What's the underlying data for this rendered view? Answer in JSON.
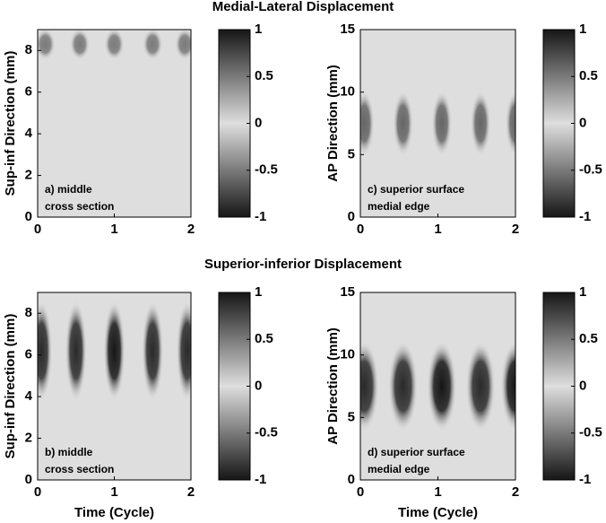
{
  "figure_titles": [
    "Medial-Lateral Displacement",
    "Superior-inferior Displacement"
  ],
  "chart_data": [
    {
      "type": "heatmap",
      "ylabel": "Sup-inf Direction (mm)",
      "annotation": [
        "a) middle",
        "cross section"
      ],
      "xlim": [
        0,
        2
      ],
      "xticks": [
        0,
        1,
        2
      ],
      "ylim": [
        0,
        9
      ],
      "yticks": [
        0,
        2,
        4,
        6,
        8
      ],
      "clim": [
        -1,
        1
      ],
      "cticks": [
        1,
        0.5,
        0,
        -0.5,
        -1
      ],
      "blobs": [
        {
          "x": 0.1,
          "y": 8.3,
          "value": 0.5
        },
        {
          "x": 0.55,
          "y": 8.3,
          "value": 0.5
        },
        {
          "x": 1.0,
          "y": 8.3,
          "value": 0.5
        },
        {
          "x": 1.5,
          "y": 8.3,
          "value": 0.5
        },
        {
          "x": 1.92,
          "y": 8.3,
          "value": 0.5
        }
      ]
    },
    {
      "type": "heatmap",
      "ylabel": "AP Direction (mm)",
      "annotation": [
        "c) superior surface",
        "medial edge"
      ],
      "xlim": [
        0,
        2
      ],
      "xticks": [
        0,
        1,
        2
      ],
      "ylim": [
        0,
        15
      ],
      "yticks": [
        0,
        5,
        10,
        15
      ],
      "clim": [
        -1,
        1
      ],
      "cticks": [
        1,
        0.5,
        0,
        -0.5,
        -1
      ],
      "blobs": [
        {
          "x": 0.05,
          "y": 7.5,
          "value": 0.6
        },
        {
          "x": 0.55,
          "y": 7.5,
          "value": 0.6
        },
        {
          "x": 1.05,
          "y": 7.5,
          "value": 0.6
        },
        {
          "x": 1.55,
          "y": 7.5,
          "value": 0.6
        },
        {
          "x": 2.0,
          "y": 7.5,
          "value": 0.6
        }
      ]
    },
    {
      "type": "heatmap",
      "ylabel": "Sup-inf Direction (mm)",
      "xlabel": "Time (Cycle)",
      "annotation": [
        "b) middle",
        "cross section"
      ],
      "xlim": [
        0,
        2
      ],
      "xticks": [
        0,
        1,
        2
      ],
      "ylim": [
        0,
        9
      ],
      "yticks": [
        0,
        2,
        4,
        6,
        8
      ],
      "clim": [
        -1,
        1
      ],
      "cticks": [
        1,
        0.5,
        0,
        -0.5,
        -1
      ],
      "blobs": [
        {
          "x": 0.05,
          "y": 6.2,
          "value": -0.9
        },
        {
          "x": 0.5,
          "y": 6.2,
          "value": -0.9
        },
        {
          "x": 1.0,
          "y": 6.2,
          "value": -1
        },
        {
          "x": 1.5,
          "y": 6.2,
          "value": -0.9
        },
        {
          "x": 1.95,
          "y": 6.2,
          "value": -0.9
        }
      ]
    },
    {
      "type": "heatmap",
      "ylabel": "AP Direction (mm)",
      "xlabel": "Time (Cycle)",
      "annotation": [
        "d) superior surface",
        "medial edge"
      ],
      "xlim": [
        0,
        2
      ],
      "xticks": [
        0,
        1,
        2
      ],
      "ylim": [
        0,
        15
      ],
      "yticks": [
        0,
        5,
        10,
        15
      ],
      "clim": [
        -1,
        1
      ],
      "cticks": [
        1,
        0.5,
        0,
        -0.5,
        -1
      ],
      "blobs": [
        {
          "x": 0.05,
          "y": 7.5,
          "value": -0.9
        },
        {
          "x": 0.55,
          "y": 7.5,
          "value": -0.9
        },
        {
          "x": 1.05,
          "y": 7.5,
          "value": -1
        },
        {
          "x": 1.55,
          "y": 7.5,
          "value": -0.9
        },
        {
          "x": 2.0,
          "y": 7.5,
          "value": -1
        }
      ]
    }
  ]
}
